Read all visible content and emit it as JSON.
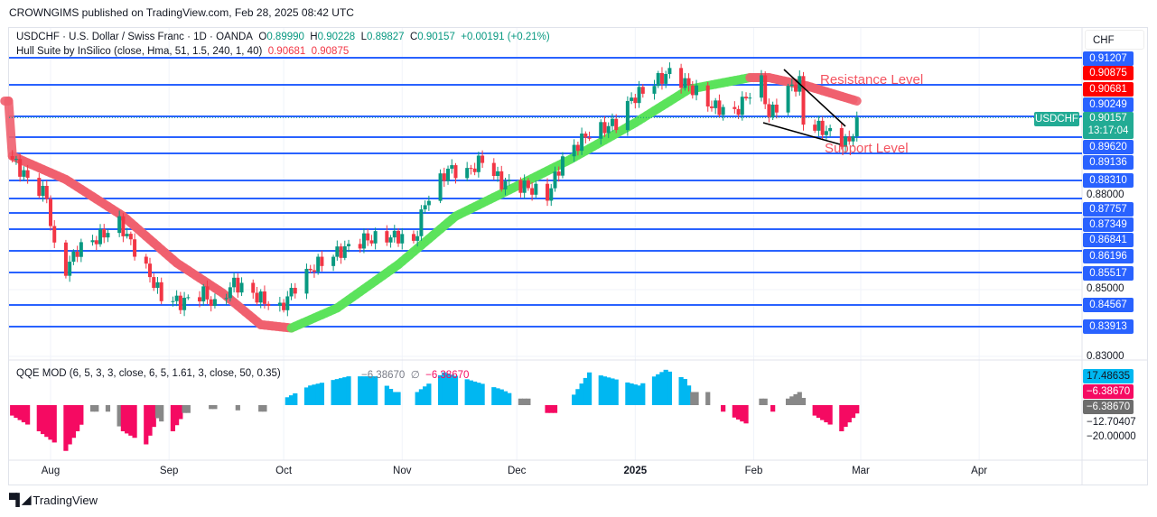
{
  "publisher_line": "CROWNGIMS published on TradingView.com, Feb 28, 2025 08:42 UTC",
  "legend": {
    "symbol": "USDCHF · U.S. Dollar / Swiss Franc · 1D · OANDA",
    "o_label": "O",
    "o": "0.89990",
    "h_label": "H",
    "h": "0.90228",
    "l_label": "L",
    "l": "0.89827",
    "c_label": "C",
    "c": "0.90157",
    "change": "+0.00191 (+0.21%)",
    "hull_label": "Hull Suite by InSilico (close, Hma, 51, 1.5, 240, 1, 40)",
    "hull_v1": "0.90681",
    "hull_v2": "0.90875"
  },
  "currency": "CHF",
  "symbol_tag": "USDCHF",
  "current_price": "0.90157",
  "countdown": "13:17:04",
  "annotations": {
    "resistance": "Resistance Level",
    "support": "Support Level"
  },
  "price_axis": {
    "level_labels": [
      "0.91207",
      "0.90249",
      "0.89620",
      "0.89136",
      "0.88310",
      "0.87757",
      "0.87349",
      "0.86841",
      "0.86196",
      "0.85517",
      "0.84567",
      "0.83913"
    ],
    "hull_labels": [
      "0.90875",
      "0.90681"
    ],
    "ticks": [
      "0.88000",
      "0.85000",
      "0.83000"
    ]
  },
  "qqe": {
    "label": "QQE MOD (6, 5, 3, 3, close, 6, 5, 1.61, 3, close, 50, 0.35)",
    "v1": "−6.38670",
    "sym": "∅",
    "v2": "−6.38670",
    "axis": {
      "cyan": "17.48635",
      "pink": "−6.38670",
      "gray": "−6.38670",
      "tick1": "−12.70407",
      "tick2": "−20.00000"
    }
  },
  "time_axis": [
    "Aug",
    "Sep",
    "Oct",
    "Nov",
    "Dec",
    "2025",
    "Feb",
    "Mar",
    "Apr"
  ],
  "brand": "TradingView",
  "colors": {
    "up": "#089981",
    "down": "#f23645",
    "level": "#2962ff",
    "hull_up": "#5be35b",
    "hull_down": "#f0606e",
    "qqe_blue": "#00b7f1",
    "qqe_pink": "#f50a62",
    "qqe_gray": "#888888"
  },
  "chart_data": {
    "type": "candlestick",
    "symbol": "USDCHF",
    "interval": "1D",
    "ylim": [
      0.83,
      0.915
    ],
    "close_keypoints": [
      [
        "2024-07-22",
        0.889
      ],
      [
        "2024-07-26",
        0.883
      ],
      [
        "2024-07-31",
        0.878
      ],
      [
        "2024-08-02",
        0.862
      ],
      [
        "2024-08-05",
        0.856
      ],
      [
        "2024-08-08",
        0.862
      ],
      [
        "2024-08-14",
        0.866
      ],
      [
        "2024-08-19",
        0.87
      ],
      [
        "2024-08-21",
        0.866
      ],
      [
        "2024-08-26",
        0.856
      ],
      [
        "2024-08-30",
        0.848
      ],
      [
        "2024-09-04",
        0.846
      ],
      [
        "2024-09-10",
        0.849
      ],
      [
        "2024-09-13",
        0.845
      ],
      [
        "2024-09-18",
        0.852
      ],
      [
        "2024-09-24",
        0.848
      ],
      [
        "2024-09-30",
        0.844
      ],
      [
        "2024-10-04",
        0.851
      ],
      [
        "2024-10-09",
        0.857
      ],
      [
        "2024-10-15",
        0.861
      ],
      [
        "2024-10-22",
        0.865
      ],
      [
        "2024-10-31",
        0.866
      ],
      [
        "2024-11-04",
        0.864
      ],
      [
        "2024-11-07",
        0.876
      ],
      [
        "2024-11-13",
        0.886
      ],
      [
        "2024-11-18",
        0.885
      ],
      [
        "2024-11-22",
        0.889
      ],
      [
        "2024-11-27",
        0.882
      ],
      [
        "2024-12-03",
        0.881
      ],
      [
        "2024-12-09",
        0.878
      ],
      [
        "2024-12-13",
        0.889
      ],
      [
        "2024-12-19",
        0.896
      ],
      [
        "2024-12-27",
        0.9
      ],
      [
        "2024-12-31",
        0.907
      ],
      [
        "2025-01-06",
        0.912
      ],
      [
        "2025-01-10",
        0.915
      ],
      [
        "2025-01-15",
        0.911
      ],
      [
        "2025-01-21",
        0.905
      ],
      [
        "2025-01-27",
        0.903
      ],
      [
        "2025-01-31",
        0.909
      ],
      [
        "2025-02-03",
        0.912
      ],
      [
        "2025-02-05",
        0.902
      ],
      [
        "2025-02-10",
        0.91
      ],
      [
        "2025-02-13",
        0.912
      ],
      [
        "2025-02-14",
        0.9
      ],
      [
        "2025-02-19",
        0.898
      ],
      [
        "2025-02-24",
        0.895
      ],
      [
        "2025-02-26",
        0.894
      ],
      [
        "2025-02-28",
        0.90157
      ]
    ],
    "hull_keypoints": [
      [
        "2024-07-22",
        0.89
      ],
      [
        "2024-08-05",
        0.883
      ],
      [
        "2024-08-20",
        0.872
      ],
      [
        "2024-09-03",
        0.858
      ],
      [
        "2024-09-15",
        0.849
      ],
      [
        "2024-09-25",
        0.8395
      ],
      [
        "2024-10-03",
        0.8385
      ],
      [
        "2024-10-15",
        0.8445
      ],
      [
        "2024-10-31",
        0.8575
      ],
      [
        "2024-11-15",
        0.872
      ],
      [
        "2024-12-01",
        0.881
      ],
      [
        "2024-12-15",
        0.889
      ],
      [
        "2025-01-01",
        0.9
      ],
      [
        "2025-01-15",
        0.91
      ],
      [
        "2025-01-31",
        0.9135
      ],
      [
        "2025-02-05",
        0.9135
      ],
      [
        "2025-02-15",
        0.911
      ],
      [
        "2025-02-28",
        0.9065
      ]
    ],
    "horizontal_levels": [
      0.91207,
      0.90681,
      0.90249,
      0.8962,
      0.89136,
      0.8831,
      0.87757,
      0.87349,
      0.86841,
      0.86196,
      0.85517,
      0.84567,
      0.83913
    ],
    "qqe_keypoints": [
      [
        "2024-07-22",
        -8,
        "p"
      ],
      [
        "2024-07-29",
        -20,
        "p"
      ],
      [
        "2024-08-05",
        -35,
        "p"
      ],
      [
        "2024-08-09",
        -15,
        "p"
      ],
      [
        "2024-08-12",
        -5,
        "g"
      ],
      [
        "2024-08-14",
        null,
        "g"
      ],
      [
        "2024-08-16",
        -5,
        "g"
      ],
      [
        "2024-08-20",
        -20,
        "p"
      ],
      [
        "2024-08-26",
        -30,
        "p"
      ],
      [
        "2024-08-29",
        -10,
        "g"
      ],
      [
        "2024-09-02",
        -20,
        "p"
      ],
      [
        "2024-09-05",
        -6,
        "g"
      ],
      [
        "2024-09-09",
        null,
        "g"
      ],
      [
        "2024-09-12",
        -3,
        "g"
      ],
      [
        "2024-09-16",
        null,
        "g"
      ],
      [
        "2024-09-19",
        -4,
        "g"
      ],
      [
        "2024-09-20",
        null,
        "g"
      ],
      [
        "2024-09-25",
        -5,
        "g"
      ],
      [
        "2024-09-27",
        null,
        "g"
      ],
      [
        "2024-10-02",
        6,
        "b"
      ],
      [
        "2024-10-08",
        15,
        "b"
      ],
      [
        "2024-10-18",
        22,
        "b"
      ],
      [
        "2024-10-25",
        22,
        "b"
      ],
      [
        "2024-10-30",
        10,
        "b"
      ],
      [
        "2024-11-01",
        null,
        "b"
      ],
      [
        "2024-11-05",
        10,
        "b"
      ],
      [
        "2024-11-12",
        25,
        "b"
      ],
      [
        "2024-11-20",
        18,
        "b"
      ],
      [
        "2024-11-27",
        12,
        "b"
      ],
      [
        "2024-12-02",
        5,
        "g"
      ],
      [
        "2024-12-05",
        null,
        "g"
      ],
      [
        "2024-12-09",
        -6,
        "p"
      ],
      [
        "2024-12-12",
        null,
        "p"
      ],
      [
        "2024-12-16",
        8,
        "b"
      ],
      [
        "2024-12-20",
        25,
        "b"
      ],
      [
        "2025-01-02",
        15,
        "b"
      ],
      [
        "2025-01-09",
        27,
        "b"
      ],
      [
        "2025-01-14",
        20,
        "b"
      ],
      [
        "2025-01-16",
        10,
        "g"
      ],
      [
        "2025-01-21",
        null,
        "g"
      ],
      [
        "2025-01-24",
        -5,
        "p"
      ],
      [
        "2025-01-30",
        -14,
        "p"
      ],
      [
        "2025-01-31",
        null,
        "p"
      ],
      [
        "2025-02-03",
        5,
        "g"
      ],
      [
        "2025-02-05",
        null,
        "g"
      ],
      [
        "2025-02-06",
        -5,
        "p"
      ],
      [
        "2025-02-07",
        null,
        "p"
      ],
      [
        "2025-02-10",
        5,
        "g"
      ],
      [
        "2025-02-13",
        10,
        "g"
      ],
      [
        "2025-02-17",
        -8,
        "p"
      ],
      [
        "2025-02-24",
        -20,
        "p"
      ],
      [
        "2025-02-28",
        -6.3867,
        "p"
      ]
    ]
  }
}
